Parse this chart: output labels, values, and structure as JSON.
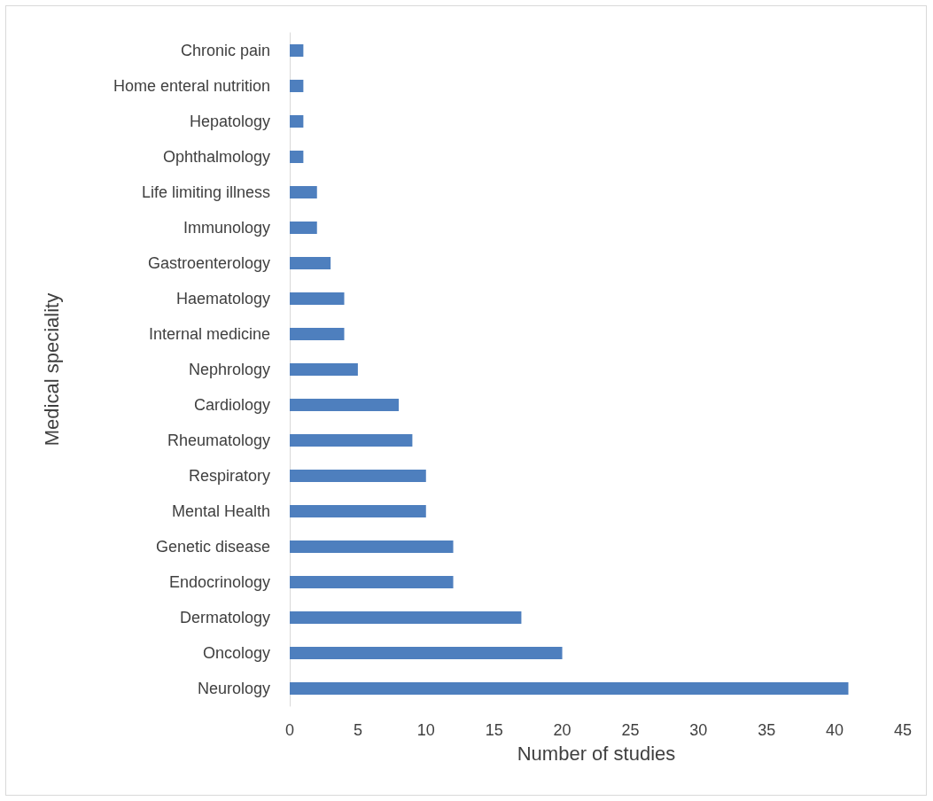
{
  "chart_data": {
    "type": "bar",
    "orientation": "horizontal",
    "categories": [
      "Chronic pain",
      "Home enteral nutrition",
      "Hepatology",
      "Ophthalmology",
      "Life limiting illness",
      "Immunology",
      "Gastroenterology",
      "Haematology",
      "Internal medicine",
      "Nephrology",
      "Cardiology",
      "Rheumatology",
      "Respiratory",
      "Mental Health",
      "Genetic disease",
      "Endocrinology",
      "Dermatology",
      "Oncology",
      "Neurology"
    ],
    "values": [
      1,
      1,
      1,
      1,
      2,
      2,
      3,
      4,
      4,
      5,
      8,
      9,
      10,
      10,
      12,
      12,
      17,
      20,
      41
    ],
    "color": "#4e7fbe",
    "xlim": [
      0,
      45
    ],
    "xticks": [
      0,
      5,
      10,
      15,
      20,
      25,
      30,
      35,
      40,
      45
    ],
    "xlabel": "Number of studies",
    "ylabel": "Medical speciality"
  }
}
